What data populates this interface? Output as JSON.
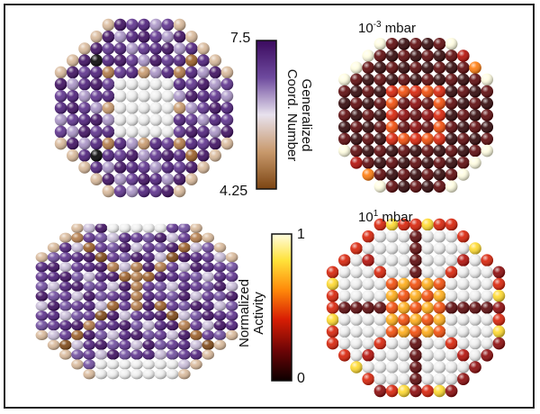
{
  "colorbar_coord": {
    "max_label": "7.5",
    "min_label": "4.25",
    "title_line1": "Generalized",
    "title_line2": "Coord. Number",
    "colors": [
      "#3b0a5e",
      "#4a1b78",
      "#5c2f8c",
      "#6e4a9e",
      "#8a6db2",
      "#a993c6",
      "#c9bcd9",
      "#e6e0ea",
      "#ead8cc",
      "#d9b99a",
      "#c8996c",
      "#b27946",
      "#9a5c24",
      "#7c4512"
    ]
  },
  "colorbar_activity": {
    "max_label": "1",
    "min_label": "0",
    "title_line1": "Normalized",
    "title_line2": "Activity",
    "colors": [
      "#fffde0",
      "#fff37a",
      "#ffd92a",
      "#ffab14",
      "#ff7a0a",
      "#f24a06",
      "#d81e04",
      "#b20a04",
      "#8a0506",
      "#5a0406",
      "#2e0204",
      "#0c0000"
    ]
  },
  "pressure_top": {
    "base": "10",
    "exp": "-3",
    "unit": " mbar"
  },
  "pressure_bottom": {
    "base": "10",
    "exp": "1",
    "unit": " mbar"
  }
}
